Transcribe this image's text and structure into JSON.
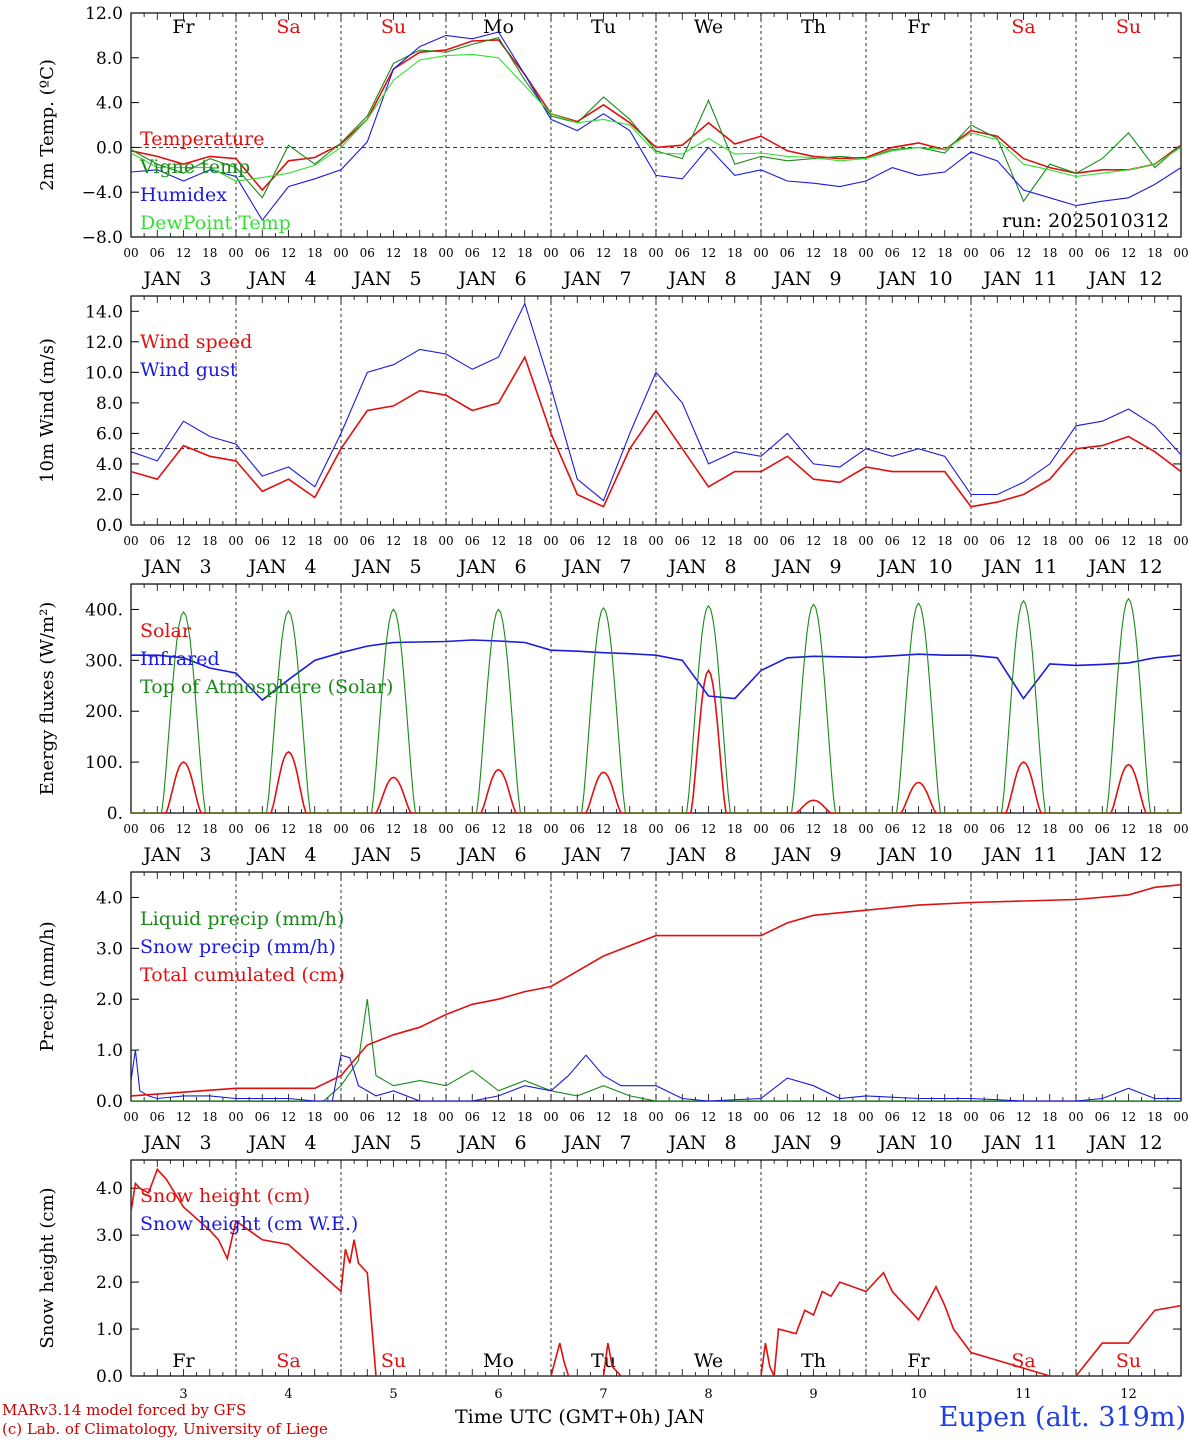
{
  "footer": {
    "credit_model": "MARv3.14 model forced by GFS",
    "credit_lab": "(c) Lab. of Climatology, University of Liege",
    "station": "Eupen (alt. 319m)",
    "x_axis_title": "Time UTC (GMT+0h) JAN"
  },
  "colors": {
    "red": "#e01010",
    "blue": "#1a1ae0",
    "green": "#188a18",
    "lightgreen": "#33e033",
    "weekend": "#e01010",
    "axis": "#000000"
  },
  "days": [
    "3",
    "4",
    "5",
    "6",
    "7",
    "8",
    "9",
    "10",
    "11",
    "12"
  ],
  "weekdays": [
    "Fr",
    "Sa",
    "Su",
    "Mo",
    "Tu",
    "We",
    "Th",
    "Fr",
    "Sa",
    "Su"
  ],
  "weekend_flags": [
    false,
    true,
    true,
    false,
    false,
    false,
    false,
    false,
    true,
    true
  ],
  "month_label": "JAN",
  "hour_labels": [
    "00",
    "06",
    "12",
    "18"
  ],
  "chart_data": [
    {
      "type": "line",
      "ylabel": "2m Temp. (ºC)",
      "ylim": [
        -8,
        12
      ],
      "yticks": [
        "−8.0",
        "−4.0",
        "0.0",
        "4.0",
        "8.0",
        "12.0"
      ],
      "ytick_values": [
        -8,
        -4,
        0,
        4,
        8,
        12
      ],
      "ref_line": 0,
      "annotation": "run: 2025010312",
      "x_unit": "hours since Jan 3 00 UTC",
      "series": [
        {
          "name": "Temperature",
          "color": "red",
          "x": [
            0,
            6,
            12,
            18,
            24,
            30,
            36,
            42,
            48,
            54,
            60,
            66,
            72,
            78,
            84,
            90,
            96,
            102,
            108,
            114,
            120,
            126,
            132,
            138,
            144,
            150,
            156,
            162,
            168,
            174,
            180,
            186,
            192,
            198,
            204,
            210,
            216,
            222,
            228,
            234,
            240
          ],
          "y": [
            -0.3,
            -0.8,
            -1.5,
            -0.8,
            -1.0,
            -3.8,
            -1.2,
            -0.9,
            0.3,
            2.5,
            7.0,
            8.5,
            8.7,
            9.5,
            9.6,
            6.5,
            3.0,
            2.3,
            3.8,
            2.2,
            0.0,
            0.2,
            2.2,
            0.3,
            1.0,
            -0.3,
            -0.8,
            -1.0,
            -0.9,
            0.0,
            0.4,
            -0.2,
            1.5,
            1.0,
            -1.0,
            -1.8,
            -2.3,
            -2.0,
            -2.0,
            -1.5,
            0.2
          ]
        },
        {
          "name": "Vigne temp",
          "color": "green",
          "x": [
            0,
            6,
            12,
            18,
            24,
            30,
            36,
            42,
            48,
            54,
            60,
            66,
            72,
            78,
            84,
            90,
            96,
            102,
            108,
            114,
            120,
            126,
            132,
            138,
            144,
            150,
            156,
            162,
            168,
            174,
            180,
            186,
            192,
            198,
            204,
            210,
            216,
            222,
            228,
            234,
            240
          ],
          "y": [
            -0.2,
            -1.5,
            -2.3,
            -1.0,
            -1.8,
            -4.5,
            0.2,
            -1.5,
            0.4,
            2.8,
            7.5,
            8.7,
            8.5,
            9.2,
            9.8,
            6.0,
            2.8,
            2.2,
            4.5,
            2.5,
            -0.3,
            -1.0,
            4.2,
            -1.5,
            -0.8,
            -1.2,
            -1.0,
            -0.8,
            -1.0,
            -0.2,
            0.0,
            -0.5,
            2.0,
            0.8,
            -4.8,
            -1.5,
            -2.3,
            -1.0,
            1.3,
            -1.8,
            0.2
          ]
        },
        {
          "name": "Humidex",
          "color": "blue",
          "x": [
            0,
            6,
            12,
            18,
            24,
            30,
            36,
            42,
            48,
            54,
            60,
            66,
            72,
            78,
            84,
            90,
            96,
            102,
            108,
            114,
            120,
            126,
            132,
            138,
            144,
            150,
            156,
            162,
            168,
            174,
            180,
            186,
            192,
            198,
            204,
            210,
            216,
            222,
            228,
            234,
            240
          ],
          "y": [
            -2.2,
            -2.0,
            -3.0,
            -2.0,
            -2.6,
            -6.5,
            -3.5,
            -2.8,
            -2.0,
            0.5,
            7.0,
            9.0,
            10.0,
            9.7,
            10.3,
            6.5,
            2.5,
            1.5,
            3.0,
            1.5,
            -2.5,
            -2.8,
            0.0,
            -2.5,
            -2.0,
            -3.0,
            -3.2,
            -3.5,
            -3.0,
            -1.8,
            -2.5,
            -2.2,
            -0.4,
            -1.2,
            -3.8,
            -4.5,
            -5.2,
            -4.8,
            -4.5,
            -3.3,
            -1.8
          ]
        },
        {
          "name": "DewPoint Temp",
          "color": "lightgreen",
          "x": [
            0,
            6,
            12,
            18,
            24,
            30,
            36,
            42,
            48,
            54,
            60,
            66,
            72,
            78,
            84,
            90,
            96,
            102,
            108,
            114,
            120,
            126,
            132,
            138,
            144,
            150,
            156,
            162,
            168,
            174,
            180,
            186,
            192,
            198,
            204,
            210,
            216,
            222,
            228,
            234,
            240
          ],
          "y": [
            -0.5,
            -1.8,
            -1.8,
            -1.8,
            -3.0,
            -2.7,
            -2.3,
            -1.6,
            0.0,
            2.5,
            6.0,
            7.8,
            8.2,
            8.3,
            8.0,
            5.5,
            3.0,
            2.2,
            2.5,
            2.0,
            -0.5,
            -0.6,
            0.8,
            -0.6,
            -0.5,
            -0.8,
            -0.9,
            -1.2,
            -1.0,
            -0.3,
            0.0,
            -0.2,
            1.3,
            0.7,
            -1.5,
            -2.0,
            -2.6,
            -2.3,
            -2.0,
            -1.5,
            0.0
          ]
        }
      ]
    },
    {
      "type": "line",
      "ylabel": "10m Wind (m/s)",
      "ylim": [
        0,
        15
      ],
      "yticks": [
        "0.0",
        "2.0",
        "4.0",
        "6.0",
        "8.0",
        "10.0",
        "12.0",
        "14.0"
      ],
      "ytick_values": [
        0,
        2,
        4,
        6,
        8,
        10,
        12,
        14
      ],
      "ref_line": 5,
      "x_unit": "hours since Jan 3 00 UTC",
      "series": [
        {
          "name": "Wind speed",
          "color": "red",
          "x": [
            0,
            6,
            12,
            18,
            24,
            30,
            36,
            42,
            48,
            54,
            60,
            66,
            72,
            78,
            84,
            90,
            96,
            102,
            108,
            114,
            120,
            126,
            132,
            138,
            144,
            150,
            156,
            162,
            168,
            174,
            180,
            186,
            192,
            198,
            204,
            210,
            216,
            222,
            228,
            234,
            240
          ],
          "y": [
            3.5,
            3.0,
            5.2,
            4.5,
            4.2,
            2.2,
            3.0,
            1.8,
            5.0,
            7.5,
            7.8,
            8.8,
            8.5,
            7.5,
            8.0,
            11.0,
            6.0,
            2.0,
            1.2,
            5.0,
            7.5,
            5.0,
            2.5,
            3.5,
            3.5,
            4.5,
            3.0,
            2.8,
            3.8,
            3.5,
            3.5,
            3.5,
            1.2,
            1.5,
            2.0,
            3.0,
            5.0,
            5.2,
            5.8,
            4.8,
            3.5
          ]
        },
        {
          "name": "Wind gust",
          "color": "blue",
          "x": [
            0,
            6,
            12,
            18,
            24,
            30,
            36,
            42,
            48,
            54,
            60,
            66,
            72,
            78,
            84,
            90,
            96,
            102,
            108,
            114,
            120,
            126,
            132,
            138,
            144,
            150,
            156,
            162,
            168,
            174,
            180,
            186,
            192,
            198,
            204,
            210,
            216,
            222,
            228,
            234,
            240
          ],
          "y": [
            4.8,
            4.2,
            6.8,
            5.8,
            5.3,
            3.2,
            3.8,
            2.5,
            6.0,
            10.0,
            10.5,
            11.5,
            11.2,
            10.2,
            11.0,
            14.5,
            9.0,
            3.0,
            1.6,
            6.0,
            10.0,
            8.0,
            4.0,
            4.8,
            4.5,
            6.0,
            4.0,
            3.8,
            5.0,
            4.5,
            5.0,
            4.5,
            2.0,
            2.0,
            2.8,
            4.0,
            6.5,
            6.8,
            7.6,
            6.5,
            4.6
          ]
        }
      ]
    },
    {
      "type": "line",
      "ylabel": "Energy fluxes (W/m²)",
      "ylim": [
        0,
        450
      ],
      "yticks": [
        "0.",
        "100.",
        "200.",
        "300.",
        "400."
      ],
      "ytick_values": [
        0,
        100,
        200,
        300,
        400
      ],
      "x_unit": "hours since Jan 3 00 UTC",
      "daily_peaks": {
        "solar": [
          100,
          120,
          70,
          85,
          80,
          280,
          25,
          60,
          100,
          95
        ],
        "toa": [
          395,
          397,
          400,
          400,
          403,
          407,
          410,
          412,
          417,
          421
        ]
      },
      "series": [
        {
          "name": "Solar",
          "color": "red"
        },
        {
          "name": "Infrared",
          "color": "blue",
          "x": [
            0,
            6,
            12,
            18,
            24,
            30,
            36,
            42,
            48,
            54,
            60,
            66,
            72,
            78,
            84,
            90,
            96,
            102,
            108,
            114,
            120,
            126,
            132,
            138,
            144,
            150,
            156,
            162,
            168,
            174,
            180,
            186,
            192,
            198,
            204,
            210,
            216,
            222,
            228,
            234,
            240
          ],
          "y": [
            310,
            310,
            305,
            285,
            275,
            222,
            262,
            300,
            315,
            328,
            335,
            336,
            337,
            340,
            338,
            335,
            320,
            318,
            315,
            313,
            310,
            300,
            230,
            225,
            280,
            305,
            308,
            307,
            306,
            309,
            312,
            310,
            310,
            305,
            225,
            293,
            290,
            292,
            295,
            305,
            310
          ]
        },
        {
          "name": "Top of Atmosphere (Solar)",
          "color": "green"
        }
      ]
    },
    {
      "type": "line",
      "ylabel": "Precip (mm/h)",
      "ylim": [
        0,
        4.5
      ],
      "yticks": [
        "0.0",
        "1.0",
        "2.0",
        "3.0",
        "4.0"
      ],
      "ytick_values": [
        0,
        1,
        2,
        3,
        4
      ],
      "x_unit": "hours since Jan 3 00 UTC",
      "series": [
        {
          "name": "Liquid precip (mm/h)",
          "color": "green",
          "x": [
            0,
            24,
            44,
            48,
            52,
            54,
            56,
            60,
            66,
            72,
            78,
            84,
            90,
            96,
            102,
            108,
            114,
            120,
            240
          ],
          "y": [
            0,
            0,
            0,
            0.3,
            0.8,
            2.0,
            0.5,
            0.3,
            0.4,
            0.3,
            0.6,
            0.2,
            0.4,
            0.2,
            0.1,
            0.3,
            0.1,
            0,
            0
          ]
        },
        {
          "name": "Snow precip (mm/h)",
          "color": "blue",
          "x": [
            0,
            1,
            2,
            4,
            6,
            12,
            18,
            24,
            30,
            36,
            42,
            46,
            48,
            50,
            52,
            56,
            60,
            66,
            72,
            78,
            84,
            90,
            96,
            100,
            104,
            108,
            112,
            116,
            120,
            126,
            132,
            144,
            150,
            156,
            162,
            168,
            180,
            192,
            204,
            216,
            222,
            228,
            234,
            240
          ],
          "y": [
            0.4,
            1.0,
            0.2,
            0.1,
            0.05,
            0.1,
            0.1,
            0.05,
            0.05,
            0.05,
            0.0,
            0.0,
            0.9,
            0.85,
            0.3,
            0.1,
            0.2,
            0.0,
            0.0,
            0.0,
            0.1,
            0.3,
            0.2,
            0.5,
            0.9,
            0.5,
            0.3,
            0.3,
            0.3,
            0.05,
            0.0,
            0.05,
            0.45,
            0.3,
            0.05,
            0.1,
            0.05,
            0.05,
            0.0,
            0.0,
            0.05,
            0.25,
            0.05,
            0.05
          ]
        },
        {
          "name": "Total cumulated (cm)",
          "color": "red",
          "x": [
            0,
            24,
            42,
            48,
            54,
            60,
            66,
            72,
            78,
            84,
            90,
            96,
            102,
            108,
            114,
            120,
            132,
            144,
            150,
            156,
            168,
            180,
            192,
            204,
            216,
            228,
            234,
            240
          ],
          "y": [
            0.1,
            0.25,
            0.25,
            0.5,
            1.1,
            1.3,
            1.45,
            1.7,
            1.9,
            2.0,
            2.15,
            2.25,
            2.55,
            2.85,
            3.05,
            3.25,
            3.25,
            3.25,
            3.5,
            3.65,
            3.75,
            3.85,
            3.9,
            3.93,
            3.96,
            4.05,
            4.2,
            4.25
          ]
        }
      ]
    },
    {
      "type": "line",
      "ylabel": "Snow height (cm)",
      "ylim": [
        0,
        4.6
      ],
      "yticks": [
        "0.0",
        "1.0",
        "2.0",
        "3.0",
        "4.0"
      ],
      "ytick_values": [
        0,
        1,
        2,
        3,
        4
      ],
      "x_unit": "hours since Jan 3 00 UTC",
      "series": [
        {
          "name": "Snow height (cm)",
          "color": "red",
          "x": [
            0,
            1,
            2,
            4,
            6,
            8,
            12,
            18,
            20,
            22,
            24,
            30,
            36,
            42,
            48,
            49,
            50,
            51,
            52,
            54,
            56,
            60,
            72,
            96,
            98,
            99,
            100,
            108,
            109,
            110,
            112,
            120,
            144,
            145,
            146,
            147,
            148,
            152,
            154,
            156,
            158,
            160,
            162,
            168,
            172,
            174,
            176,
            180,
            184,
            186,
            188,
            192,
            210,
            216,
            222,
            228,
            234,
            240
          ],
          "y": [
            3.5,
            4.1,
            4.0,
            3.9,
            4.4,
            4.2,
            3.6,
            3.1,
            2.9,
            2.5,
            3.3,
            2.9,
            2.8,
            2.3,
            1.8,
            2.7,
            2.4,
            2.9,
            2.4,
            2.2,
            0,
            0,
            0,
            0,
            0.7,
            0.3,
            0,
            0,
            0.7,
            0.2,
            0,
            0,
            0,
            0.7,
            0.2,
            0,
            1.0,
            0.9,
            1.4,
            1.3,
            1.8,
            1.7,
            2.0,
            1.8,
            2.2,
            1.8,
            1.6,
            1.2,
            1.9,
            1.5,
            1.0,
            0.5,
            0,
            0,
            0.7,
            0.7,
            1.4,
            1.5
          ]
        },
        {
          "name": "Snow height (cm W.E.)",
          "color": "blue"
        }
      ]
    }
  ]
}
